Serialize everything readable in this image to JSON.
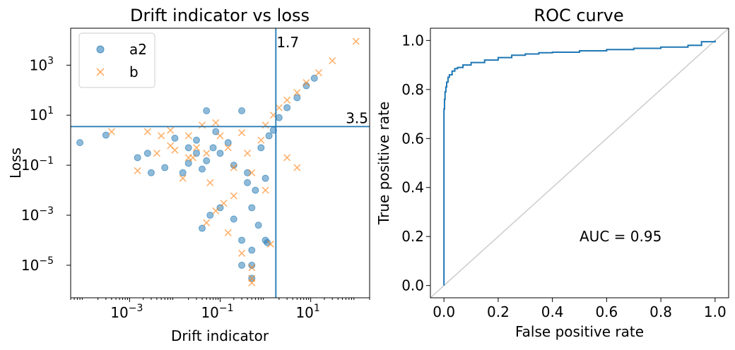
{
  "chart_data": [
    {
      "type": "scatter",
      "title": "Drift indicator vs loss",
      "xlabel": "Drift indicator",
      "ylabel": "Loss",
      "xscale": "log",
      "yscale": "log",
      "xlim": [
        5e-05,
        200
      ],
      "ylim": [
        5e-07,
        30000
      ],
      "xticks": [
        {
          "value": 0.001,
          "base": "10",
          "exp": "−3"
        },
        {
          "value": 0.1,
          "base": "10",
          "exp": "−1"
        },
        {
          "value": 10,
          "base": "10",
          "exp": "1"
        }
      ],
      "yticks": [
        {
          "value": 1e-05,
          "base": "10",
          "exp": "−5"
        },
        {
          "value": 0.001,
          "base": "10",
          "exp": "−3"
        },
        {
          "value": 0.1,
          "base": "10",
          "exp": "−1"
        },
        {
          "value": 10,
          "base": "10",
          "exp": "1"
        },
        {
          "value": 1000,
          "base": "10",
          "exp": "3"
        }
      ],
      "threshold_lines": {
        "vertical": {
          "value": 1.7,
          "label": "1.7"
        },
        "horizontal": {
          "value": 3.5,
          "label": "3.5"
        }
      },
      "legend_position": "top-left",
      "series": [
        {
          "name": "a2",
          "marker": "circle",
          "color": "#1f77b4",
          "points": [
            [
              8e-05,
              0.8
            ],
            [
              0.0003,
              1.6
            ],
            [
              0.0015,
              0.2
            ],
            [
              0.0025,
              0.3
            ],
            [
              0.003,
              0.05
            ],
            [
              0.006,
              0.08
            ],
            [
              0.01,
              1.2
            ],
            [
              0.015,
              0.05
            ],
            [
              0.02,
              0.12
            ],
            [
              0.02,
              0.5
            ],
            [
              0.03,
              0.3
            ],
            [
              0.03,
              1.0
            ],
            [
              0.04,
              0.07
            ],
            [
              0.05,
              0.15
            ],
            [
              0.05,
              15
            ],
            [
              0.07,
              0.5
            ],
            [
              0.08,
              2.2
            ],
            [
              0.1,
              0.3
            ],
            [
              0.15,
              0.8
            ],
            [
              0.2,
              0.1
            ],
            [
              0.3,
              15
            ],
            [
              0.4,
              0.05
            ],
            [
              0.5,
              0.002
            ],
            [
              0.6,
              0.01
            ],
            [
              0.8,
              0.5
            ],
            [
              1.0,
              0.03
            ],
            [
              1.2,
              1.5
            ],
            [
              1.5,
              2.5
            ],
            [
              2.0,
              8
            ],
            [
              3.0,
              20
            ],
            [
              5.0,
              50
            ],
            [
              8.0,
              150
            ],
            [
              12.0,
              300
            ],
            [
              0.04,
              0.0003
            ],
            [
              0.06,
              0.001
            ],
            [
              0.1,
              0.002
            ],
            [
              0.2,
              0.0007
            ],
            [
              0.3,
              0.0001
            ],
            [
              0.5,
              4e-05
            ],
            [
              0.3,
              1e-05
            ],
            [
              0.5,
              1e-05
            ],
            [
              0.5,
              3e-06
            ],
            [
              1.0,
              0.0001
            ],
            [
              1.1,
              8e-05
            ],
            [
              0.7,
              0.0004
            ],
            [
              0.4,
              0.02
            ]
          ]
        },
        {
          "name": "b",
          "marker": "x",
          "color": "#ff7f0e",
          "points": [
            [
              0.0004,
              2.2
            ],
            [
              0.0015,
              0.06
            ],
            [
              0.0025,
              2.2
            ],
            [
              0.004,
              0.3
            ],
            [
              0.005,
              1.5
            ],
            [
              0.008,
              2.5
            ],
            [
              0.01,
              0.4
            ],
            [
              0.015,
              0.03
            ],
            [
              0.02,
              1.5
            ],
            [
              0.025,
              0.2
            ],
            [
              0.03,
              0.5
            ],
            [
              0.04,
              4
            ],
            [
              0.05,
              0.3
            ],
            [
              0.06,
              0.02
            ],
            [
              0.08,
              5
            ],
            [
              0.1,
              1.5
            ],
            [
              0.15,
              0.5
            ],
            [
              0.2,
              0.08
            ],
            [
              0.3,
              2
            ],
            [
              0.4,
              0.3
            ],
            [
              0.5,
              0.05
            ],
            [
              0.8,
              1
            ],
            [
              1.0,
              4
            ],
            [
              1.5,
              10
            ],
            [
              2.0,
              20
            ],
            [
              3.0,
              40
            ],
            [
              5.0,
              80
            ],
            [
              8.0,
              200
            ],
            [
              15.0,
              500
            ],
            [
              30.0,
              1500
            ],
            [
              100,
              9000
            ],
            [
              0.05,
              0.0005
            ],
            [
              0.08,
              0.0015
            ],
            [
              0.12,
              0.003
            ],
            [
              0.15,
              0.0002
            ],
            [
              0.2,
              0.006
            ],
            [
              0.3,
              3e-05
            ],
            [
              0.5,
              8e-06
            ],
            [
              0.5,
              3e-06
            ],
            [
              0.5,
              2e-06
            ],
            [
              1.0,
              0.01
            ],
            [
              1.3,
              7e-05
            ],
            [
              3.0,
              0.2
            ],
            [
              5.0,
              0.08
            ],
            [
              0.02,
              0.2
            ],
            [
              0.008,
              0.6
            ]
          ]
        }
      ]
    },
    {
      "type": "line",
      "title": "ROC curve",
      "xlabel": "False positive rate",
      "ylabel": "True positive rate",
      "xlim": [
        -0.05,
        1.05
      ],
      "ylim": [
        -0.05,
        1.05
      ],
      "xticks": [
        "0.0",
        "0.2",
        "0.4",
        "0.6",
        "0.8",
        "1.0"
      ],
      "yticks": [
        "0.0",
        "0.2",
        "0.4",
        "0.6",
        "0.8",
        "1.0"
      ],
      "annotation": {
        "text": "AUC = 0.95",
        "x": 0.5,
        "y": 0.2
      },
      "diagonal": true,
      "series": [
        {
          "color": "#1f77b4",
          "x": [
            0,
            0,
            0.002,
            0.004,
            0.007,
            0.01,
            0.015,
            0.02,
            0.03,
            0.04,
            0.05,
            0.07,
            0.1,
            0.15,
            0.2,
            0.25,
            0.3,
            0.35,
            0.4,
            0.5,
            0.6,
            0.7,
            0.8,
            0.9,
            0.95,
            1.0
          ],
          "y": [
            0,
            0.72,
            0.76,
            0.79,
            0.81,
            0.83,
            0.85,
            0.86,
            0.875,
            0.885,
            0.89,
            0.9,
            0.91,
            0.92,
            0.93,
            0.94,
            0.945,
            0.95,
            0.952,
            0.958,
            0.963,
            0.968,
            0.973,
            0.98,
            0.995,
            1.0
          ]
        }
      ],
      "diagonal_color": "#cccccc"
    }
  ]
}
